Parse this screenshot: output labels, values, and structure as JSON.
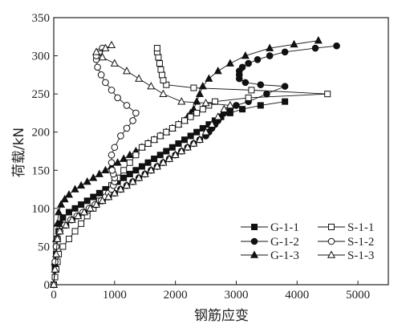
{
  "chart_data": {
    "type": "scatter",
    "title": "",
    "xlabel": "钢筋应变",
    "ylabel": "荷载/kN",
    "xlim": [
      0,
      5500
    ],
    "ylim": [
      0,
      350
    ],
    "xticks": [
      "0",
      "1000",
      "2000",
      "3000",
      "4000",
      "5000"
    ],
    "yticks": [
      "0",
      "50",
      "100",
      "150",
      "200",
      "250",
      "300",
      "350"
    ],
    "grid": false,
    "legend_position": "bottom-right",
    "series": [
      {
        "name": "G-1-1",
        "marker": "square-filled",
        "color": "#111111",
        "points": [
          [
            0,
            0
          ],
          [
            20,
            20
          ],
          [
            40,
            40
          ],
          [
            60,
            60
          ],
          [
            80,
            70
          ],
          [
            100,
            80
          ],
          [
            150,
            88
          ],
          [
            250,
            95
          ],
          [
            350,
            100
          ],
          [
            450,
            105
          ],
          [
            550,
            110
          ],
          [
            650,
            115
          ],
          [
            750,
            120
          ],
          [
            850,
            125
          ],
          [
            950,
            130
          ],
          [
            1050,
            135
          ],
          [
            1150,
            140
          ],
          [
            1250,
            145
          ],
          [
            1350,
            150
          ],
          [
            1450,
            155
          ],
          [
            1550,
            160
          ],
          [
            1650,
            165
          ],
          [
            1750,
            170
          ],
          [
            1850,
            175
          ],
          [
            1950,
            180
          ],
          [
            2050,
            185
          ],
          [
            2150,
            190
          ],
          [
            2250,
            195
          ],
          [
            2350,
            200
          ],
          [
            2450,
            205
          ],
          [
            2550,
            210
          ],
          [
            2650,
            215
          ],
          [
            2750,
            220
          ],
          [
            2900,
            225
          ],
          [
            3100,
            230
          ],
          [
            3400,
            235
          ],
          [
            3800,
            240
          ]
        ]
      },
      {
        "name": "G-1-2",
        "marker": "circle-filled",
        "color": "#111111",
        "points": [
          [
            0,
            0
          ],
          [
            20,
            25
          ],
          [
            40,
            50
          ],
          [
            60,
            60
          ],
          [
            100,
            70
          ],
          [
            200,
            78
          ],
          [
            300,
            85
          ],
          [
            400,
            90
          ],
          [
            500,
            95
          ],
          [
            600,
            100
          ],
          [
            700,
            105
          ],
          [
            800,
            110
          ],
          [
            900,
            115
          ],
          [
            1000,
            120
          ],
          [
            1100,
            125
          ],
          [
            1200,
            130
          ],
          [
            1300,
            135
          ],
          [
            1400,
            140
          ],
          [
            1500,
            145
          ],
          [
            1600,
            150
          ],
          [
            1700,
            155
          ],
          [
            1800,
            160
          ],
          [
            1900,
            165
          ],
          [
            2000,
            170
          ],
          [
            2100,
            175
          ],
          [
            2200,
            180
          ],
          [
            2300,
            185
          ],
          [
            2400,
            190
          ],
          [
            2500,
            195
          ],
          [
            2550,
            200
          ],
          [
            2600,
            205
          ],
          [
            2650,
            210
          ],
          [
            2700,
            215
          ],
          [
            2750,
            220
          ],
          [
            2800,
            225
          ],
          [
            2900,
            230
          ],
          [
            3000,
            235
          ],
          [
            3200,
            240
          ],
          [
            3500,
            250
          ],
          [
            3800,
            260
          ],
          [
            3400,
            262
          ],
          [
            3150,
            265
          ],
          [
            3050,
            270
          ],
          [
            3050,
            275
          ],
          [
            3050,
            280
          ],
          [
            3100,
            285
          ],
          [
            3200,
            290
          ],
          [
            3350,
            295
          ],
          [
            3550,
            300
          ],
          [
            3800,
            305
          ],
          [
            4300,
            310
          ],
          [
            4650,
            313
          ]
        ]
      },
      {
        "name": "G-1-3",
        "marker": "triangle-filled",
        "color": "#111111",
        "points": [
          [
            0,
            0
          ],
          [
            20,
            30
          ],
          [
            40,
            60
          ],
          [
            60,
            80
          ],
          [
            80,
            95
          ],
          [
            120,
            105
          ],
          [
            180,
            112
          ],
          [
            250,
            118
          ],
          [
            350,
            125
          ],
          [
            450,
            130
          ],
          [
            550,
            135
          ],
          [
            650,
            140
          ],
          [
            750,
            145
          ],
          [
            850,
            150
          ],
          [
            950,
            155
          ],
          [
            1050,
            160
          ],
          [
            1150,
            165
          ],
          [
            1250,
            170
          ],
          [
            1350,
            175
          ],
          [
            1450,
            180
          ],
          [
            1550,
            185
          ],
          [
            1650,
            190
          ],
          [
            1750,
            195
          ],
          [
            1850,
            200
          ],
          [
            1950,
            205
          ],
          [
            2050,
            210
          ],
          [
            2150,
            215
          ],
          [
            2200,
            220
          ],
          [
            2250,
            225
          ],
          [
            2300,
            230
          ],
          [
            2350,
            240
          ],
          [
            2400,
            250
          ],
          [
            2450,
            260
          ],
          [
            2550,
            270
          ],
          [
            2700,
            280
          ],
          [
            2900,
            290
          ],
          [
            3150,
            300
          ],
          [
            3550,
            310
          ],
          [
            3950,
            315
          ],
          [
            4350,
            320
          ]
        ]
      },
      {
        "name": "S-1-1",
        "marker": "square-open",
        "color": "#111111",
        "points": [
          [
            0,
            0
          ],
          [
            20,
            10
          ],
          [
            40,
            20
          ],
          [
            60,
            30
          ],
          [
            80,
            40
          ],
          [
            150,
            50
          ],
          [
            250,
            60
          ],
          [
            350,
            70
          ],
          [
            450,
            80
          ],
          [
            550,
            90
          ],
          [
            650,
            100
          ],
          [
            750,
            110
          ],
          [
            850,
            120
          ],
          [
            950,
            130
          ],
          [
            1050,
            140
          ],
          [
            1150,
            150
          ],
          [
            1250,
            160
          ],
          [
            1350,
            170
          ],
          [
            1450,
            180
          ],
          [
            1550,
            185
          ],
          [
            1650,
            190
          ],
          [
            1750,
            195
          ],
          [
            1850,
            200
          ],
          [
            1950,
            205
          ],
          [
            2050,
            210
          ],
          [
            2150,
            215
          ],
          [
            2250,
            220
          ],
          [
            2350,
            225
          ],
          [
            2450,
            230
          ],
          [
            2550,
            235
          ],
          [
            2650,
            240
          ],
          [
            3200,
            245
          ],
          [
            4500,
            250
          ],
          [
            3250,
            255
          ],
          [
            2300,
            258
          ],
          [
            1850,
            262
          ],
          [
            1800,
            268
          ],
          [
            1780,
            275
          ],
          [
            1760,
            282
          ],
          [
            1740,
            290
          ],
          [
            1720,
            298
          ],
          [
            1700,
            305
          ],
          [
            1700,
            310
          ]
        ]
      },
      {
        "name": "S-1-2",
        "marker": "circle-open",
        "color": "#111111",
        "points": [
          [
            0,
            0
          ],
          [
            20,
            30
          ],
          [
            40,
            50
          ],
          [
            60,
            60
          ],
          [
            100,
            70
          ],
          [
            180,
            78
          ],
          [
            280,
            85
          ],
          [
            380,
            90
          ],
          [
            480,
            95
          ],
          [
            580,
            100
          ],
          [
            680,
            105
          ],
          [
            780,
            110
          ],
          [
            850,
            115
          ],
          [
            900,
            120
          ],
          [
            950,
            125
          ],
          [
            980,
            130
          ],
          [
            1000,
            135
          ],
          [
            1000,
            140
          ],
          [
            980,
            145
          ],
          [
            960,
            150
          ],
          [
            950,
            160
          ],
          [
            950,
            170
          ],
          [
            1000,
            180
          ],
          [
            1100,
            195
          ],
          [
            1200,
            205
          ],
          [
            1300,
            215
          ],
          [
            1350,
            225
          ],
          [
            1200,
            235
          ],
          [
            1050,
            245
          ],
          [
            950,
            255
          ],
          [
            850,
            265
          ],
          [
            780,
            275
          ],
          [
            720,
            285
          ],
          [
            700,
            295
          ],
          [
            700,
            300
          ],
          [
            750,
            305
          ],
          [
            800,
            310
          ]
        ]
      },
      {
        "name": "S-1-3",
        "marker": "triangle-open",
        "color": "#111111",
        "points": [
          [
            0,
            0
          ],
          [
            20,
            20
          ],
          [
            40,
            40
          ],
          [
            60,
            60
          ],
          [
            100,
            70
          ],
          [
            200,
            78
          ],
          [
            300,
            85
          ],
          [
            400,
            90
          ],
          [
            500,
            95
          ],
          [
            600,
            100
          ],
          [
            700,
            105
          ],
          [
            800,
            110
          ],
          [
            900,
            115
          ],
          [
            1000,
            120
          ],
          [
            1100,
            125
          ],
          [
            1200,
            130
          ],
          [
            1300,
            135
          ],
          [
            1400,
            140
          ],
          [
            1500,
            145
          ],
          [
            1600,
            150
          ],
          [
            1700,
            155
          ],
          [
            1800,
            160
          ],
          [
            1900,
            165
          ],
          [
            2000,
            170
          ],
          [
            2100,
            175
          ],
          [
            2200,
            180
          ],
          [
            2300,
            185
          ],
          [
            2400,
            190
          ],
          [
            2500,
            200
          ],
          [
            2600,
            210
          ],
          [
            2700,
            220
          ],
          [
            2800,
            230
          ],
          [
            2900,
            235
          ],
          [
            2500,
            238
          ],
          [
            2100,
            240
          ],
          [
            1800,
            250
          ],
          [
            1600,
            260
          ],
          [
            1400,
            270
          ],
          [
            1200,
            280
          ],
          [
            1000,
            290
          ],
          [
            800,
            298
          ],
          [
            700,
            305
          ],
          [
            850,
            310
          ],
          [
            950,
            314
          ]
        ]
      }
    ]
  }
}
